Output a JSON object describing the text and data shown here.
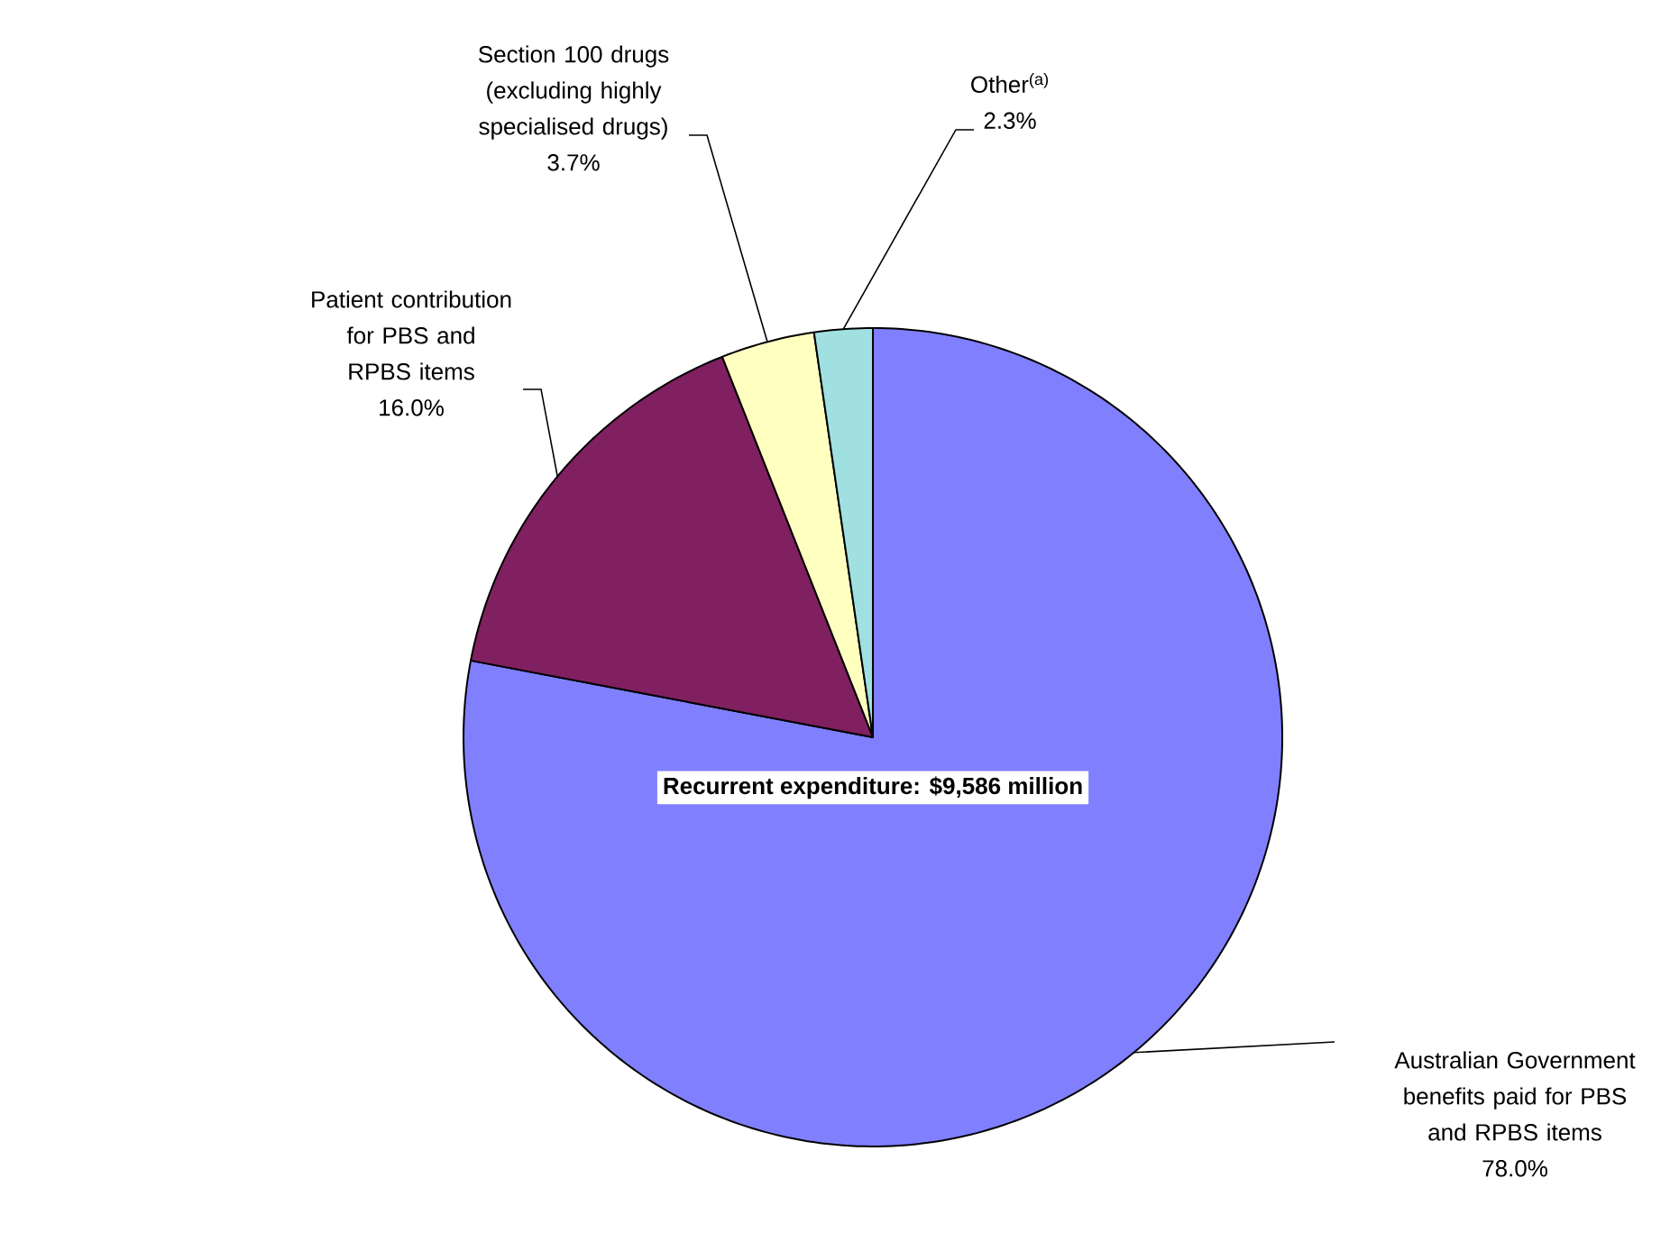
{
  "chart_data": {
    "type": "pie",
    "categories": [
      "Australian Government benefits paid for PBS and RPBS items",
      "Patient contribution for PBS and RPBS items",
      "Section 100 drugs (excluding highly specialised drugs)",
      "Other$^{(a)}$"
    ],
    "values": [
      78.0,
      16.0,
      3.7,
      2.3
    ],
    "value_labels": [
      "78.0%",
      "16.0%",
      "3.7%",
      "2.3%"
    ],
    "colors": [
      "#8080ff",
      "#802060",
      "#ffffc0",
      "#a0e0e0"
    ],
    "annotations": [
      "Recurrent expenditure: $9,586 million"
    ]
  }
}
